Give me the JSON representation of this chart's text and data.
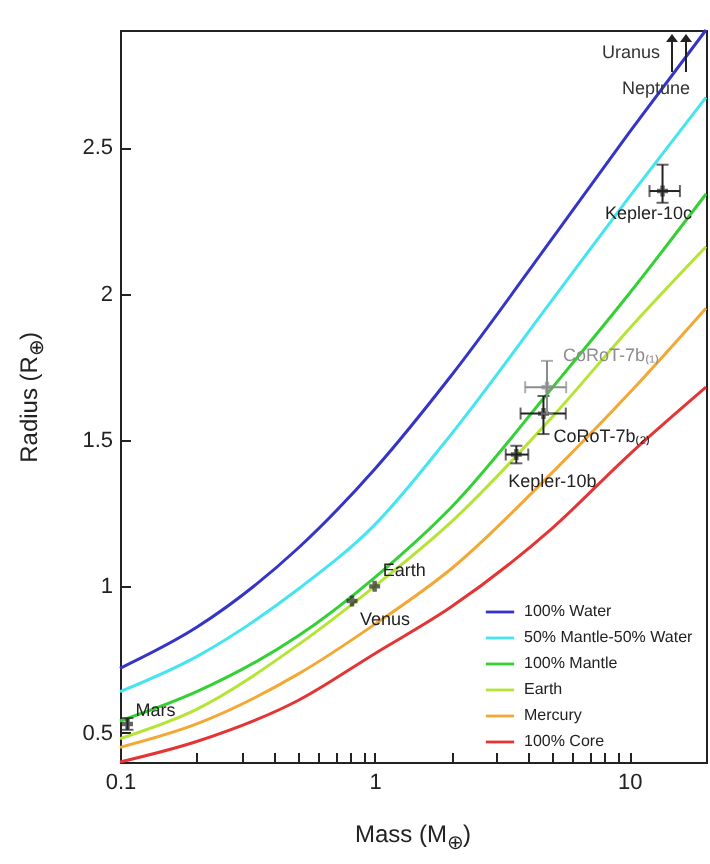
{
  "chart_data": {
    "type": "line",
    "xlabel": "Mass (M$_{⊕}$)",
    "ylabel": "Radius (R$_{⊕}$)",
    "log": "x",
    "xlim": [
      0.1,
      20
    ],
    "ylim": [
      0.4,
      2.9
    ],
    "xticks": [
      0.1,
      {
        "value": 0.2,
        "label": null
      },
      {
        "value": 0.3,
        "label": null
      },
      {
        "value": 0.4,
        "label": null
      },
      {
        "value": 0.5,
        "label": null
      },
      {
        "value": 0.6,
        "label": null
      },
      {
        "value": 0.7,
        "label": null
      },
      {
        "value": 0.8,
        "label": null
      },
      {
        "value": 0.9,
        "label": null
      },
      1,
      {
        "value": 2,
        "label": null
      },
      {
        "value": 3,
        "label": null
      },
      {
        "value": 4,
        "label": null
      },
      {
        "value": 5,
        "label": null
      },
      {
        "value": 6,
        "label": null
      },
      {
        "value": 7,
        "label": null
      },
      {
        "value": 8,
        "label": null
      },
      {
        "value": 9,
        "label": null
      },
      10
    ],
    "yticks": [
      0.5,
      1,
      1.5,
      2,
      2.5
    ],
    "grid": false,
    "legend": "bottom right",
    "x": [
      0.1,
      0.2,
      0.5,
      1,
      2,
      5,
      10,
      20
    ],
    "series": [
      {
        "name": "100% Water",
        "color": "#3434c8",
        "type": "line",
        "values": [
          0.72,
          0.86,
          1.13,
          1.4,
          1.72,
          2.19,
          2.55,
          2.9
        ]
      },
      {
        "name": "50% Mantle-50% Water",
        "color": "#44e4f0",
        "type": "line",
        "values": [
          0.64,
          0.76,
          0.99,
          1.21,
          1.52,
          1.98,
          2.33,
          2.67
        ]
      },
      {
        "name": "100% Mantle",
        "color": "#34d034",
        "type": "line",
        "values": [
          0.54,
          0.64,
          0.83,
          1.03,
          1.27,
          1.68,
          2.0,
          2.34
        ]
      },
      {
        "name": "Earth",
        "color": "#b4e434",
        "type": "line",
        "values": [
          0.48,
          0.58,
          0.8,
          1.0,
          1.22,
          1.58,
          1.88,
          2.16
        ]
      },
      {
        "name": "Mercury",
        "color": "#f4a834",
        "type": "line",
        "values": [
          0.45,
          0.53,
          0.7,
          0.87,
          1.06,
          1.39,
          1.66,
          1.95
        ]
      },
      {
        "name": "100% Core",
        "color": "#e43434",
        "type": "line",
        "values": [
          0.4,
          0.47,
          0.61,
          0.77,
          0.93,
          1.2,
          1.45,
          1.68
        ]
      },
      {
        "name": "Mars",
        "color": "#222222",
        "type": "scatter",
        "marker": "cross",
        "x": [
          0.107
        ],
        "values": [
          0.53
        ],
        "errors": [
          [
            0.51,
            0.55
          ]
        ]
      },
      {
        "name": "Venus",
        "color": "#222222",
        "type": "scatter",
        "marker": "cross",
        "x": [
          0.815
        ],
        "values": [
          0.95
        ]
      },
      {
        "name": "Earth",
        "color": "#222222",
        "type": "scatter",
        "marker": "cross",
        "x": [
          1
        ],
        "values": [
          1
        ]
      },
      {
        "name": "Kepler-10b",
        "color": "#222222",
        "type": "scatter",
        "marker": "cross",
        "x": [
          3.6
        ],
        "values": [
          1.45
        ],
        "xerrors": [
          [
            3.27,
            4.01
          ]
        ],
        "errors": [
          [
            1.42,
            1.48
          ]
        ]
      },
      {
        "name": "CoRoT-7b₍₂₎",
        "color": "#222222",
        "type": "scatter",
        "marker": "cross",
        "x": [
          4.6
        ],
        "values": [
          1.59
        ],
        "xerrors": [
          [
            3.74,
            5.63
          ]
        ],
        "errors": [
          [
            1.52,
            1.65
          ]
        ]
      },
      {
        "name": "CoRoT-7b₍₁₎",
        "color": "#8c8c8c",
        "type": "scatter",
        "marker": "cross",
        "x": [
          4.75
        ],
        "values": [
          1.68
        ],
        "xerrors": [
          [
            3.9,
            5.65
          ]
        ],
        "errors": [
          [
            1.59,
            1.77
          ]
        ]
      },
      {
        "name": "Kepler-10c",
        "color": "#222222",
        "type": "scatter",
        "marker": "cross",
        "x": [
          13.5
        ],
        "values": [
          2.35
        ],
        "xerrors": [
          [
            12.0,
            15.8
          ]
        ],
        "errors": [
          [
            2.31,
            2.44
          ]
        ]
      }
    ],
    "annotations": [
      "Uranus",
      "Neptune"
    ]
  }
}
